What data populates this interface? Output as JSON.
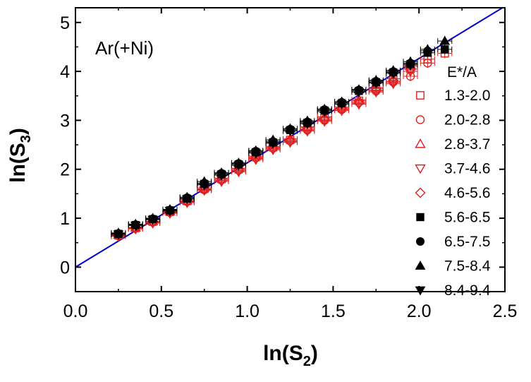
{
  "chart_data": {
    "type": "scatter",
    "title": "",
    "annotation": "Ar(+Ni)",
    "xlabel": {
      "main": "ln(S",
      "sub": "2",
      "close": ")"
    },
    "ylabel": {
      "main": "ln(S",
      "sub": "3",
      "close": ")"
    },
    "xlim": [
      0.0,
      2.5
    ],
    "ylim": [
      -0.5,
      5.3
    ],
    "x_ticks": [
      0.0,
      0.5,
      1.0,
      1.5,
      2.0,
      2.5
    ],
    "x_tick_labels": [
      "0.0",
      "0.5",
      "1.0",
      "1.5",
      "2.0",
      "2.5"
    ],
    "y_ticks": [
      0,
      1,
      2,
      3,
      4,
      5
    ],
    "y_tick_labels": [
      "0",
      "1",
      "2",
      "3",
      "4",
      "5"
    ],
    "grid": false,
    "legend": {
      "title": "E*/A",
      "placement": "right"
    },
    "fit_line": {
      "x": [
        0.0,
        2.5
      ],
      "y": [
        0.0,
        5.33
      ],
      "color": "#0000cc"
    },
    "series": [
      {
        "name": "1.3-2.0",
        "marker": "square-open",
        "color": "#e02020",
        "x": [
          0.25,
          0.35,
          0.45,
          0.55,
          0.65,
          0.75,
          0.85,
          0.95,
          1.05,
          1.15,
          1.25,
          1.35,
          1.45,
          1.55,
          1.65,
          1.75,
          1.85,
          1.95,
          2.05,
          2.15
        ],
        "y": [
          0.65,
          0.8,
          0.93,
          1.13,
          1.35,
          1.6,
          1.8,
          2.0,
          2.25,
          2.45,
          2.6,
          2.85,
          3.05,
          3.25,
          3.4,
          3.65,
          3.85,
          4.05,
          4.25,
          4.37
        ]
      },
      {
        "name": "2.0-2.8",
        "marker": "circle-open",
        "color": "#e02020",
        "x": [
          0.25,
          0.35,
          0.45,
          0.55,
          0.65,
          0.75,
          0.85,
          0.95,
          1.05,
          1.15,
          1.25,
          1.35,
          1.45,
          1.55,
          1.65,
          1.75,
          1.85,
          1.95,
          2.05
        ],
        "y": [
          0.64,
          0.8,
          0.92,
          1.12,
          1.34,
          1.58,
          1.78,
          1.98,
          2.23,
          2.43,
          2.58,
          2.8,
          3.0,
          3.22,
          3.37,
          3.6,
          3.78,
          3.9,
          4.17
        ]
      },
      {
        "name": "2.8-3.7",
        "marker": "triangle-up-open",
        "color": "#e02020",
        "x": [
          0.25,
          0.35,
          0.45,
          0.55,
          0.65,
          0.75,
          0.85,
          0.95,
          1.05,
          1.15,
          1.25,
          1.35,
          1.45,
          1.55,
          1.65,
          1.75,
          1.85,
          1.95
        ],
        "y": [
          0.66,
          0.81,
          0.94,
          1.14,
          1.36,
          1.62,
          1.82,
          2.02,
          2.27,
          2.47,
          2.62,
          2.87,
          3.07,
          3.27,
          3.42,
          3.67,
          3.85,
          4.1
        ]
      },
      {
        "name": "3.7-4.6",
        "marker": "triangle-down-open",
        "color": "#e02020",
        "x": [
          0.25,
          0.35,
          0.45,
          0.55,
          0.65,
          0.75,
          0.85,
          0.95,
          1.05,
          1.15,
          1.25,
          1.35,
          1.45,
          1.55,
          1.65,
          1.75,
          1.85,
          1.95
        ],
        "y": [
          0.63,
          0.78,
          0.9,
          1.1,
          1.32,
          1.57,
          1.75,
          1.95,
          2.2,
          2.4,
          2.55,
          2.78,
          2.98,
          3.2,
          3.33,
          3.58,
          3.75,
          4.0
        ]
      },
      {
        "name": "4.6-5.6",
        "marker": "diamond-open",
        "color": "#e02020",
        "x": [
          0.25,
          0.35,
          0.45,
          0.55,
          0.65,
          0.75,
          0.85,
          0.95,
          1.05,
          1.15,
          1.25,
          1.35,
          1.45,
          1.55,
          1.65,
          1.75,
          1.85,
          1.95
        ],
        "y": [
          0.65,
          0.79,
          0.91,
          1.11,
          1.33,
          1.59,
          1.77,
          1.97,
          2.22,
          2.42,
          2.57,
          2.82,
          3.02,
          3.23,
          3.35,
          3.62,
          3.8,
          4.05
        ]
      },
      {
        "name": "5.6-6.5",
        "marker": "square-filled",
        "color": "#000000",
        "x": [
          0.25,
          0.35,
          0.45,
          0.55,
          0.65,
          0.75,
          0.85,
          0.95,
          1.05,
          1.15,
          1.25,
          1.35,
          1.45,
          1.55,
          1.65,
          1.75,
          1.85,
          1.95,
          2.05,
          2.15
        ],
        "y": [
          0.68,
          0.86,
          0.98,
          1.16,
          1.4,
          1.7,
          1.9,
          2.1,
          2.35,
          2.55,
          2.8,
          2.95,
          3.2,
          3.35,
          3.6,
          3.78,
          3.98,
          4.15,
          4.38,
          4.45
        ]
      },
      {
        "name": "6.5-7.5",
        "marker": "circle-filled",
        "color": "#000000",
        "x": [
          0.25,
          0.35,
          0.45,
          0.55,
          0.65,
          0.75,
          0.85,
          0.95,
          1.05,
          1.15,
          1.25,
          1.35,
          1.45,
          1.55,
          1.65,
          1.75,
          1.85,
          1.95,
          2.05
        ],
        "y": [
          0.69,
          0.87,
          0.99,
          1.17,
          1.42,
          1.72,
          1.92,
          2.12,
          2.37,
          2.57,
          2.82,
          2.97,
          3.22,
          3.37,
          3.62,
          3.8,
          4.0,
          4.17,
          4.42
        ]
      },
      {
        "name": "7.5-8.4",
        "marker": "triangle-up-filled",
        "color": "#000000",
        "x": [
          0.25,
          0.35,
          0.45,
          0.55,
          0.65,
          0.75,
          0.85,
          0.95,
          1.05,
          1.15,
          1.25,
          1.35,
          1.45,
          1.55,
          1.65,
          1.75,
          1.85,
          1.95,
          2.05,
          2.15
        ],
        "y": [
          0.7,
          0.88,
          1.0,
          1.18,
          1.43,
          1.75,
          1.93,
          2.13,
          2.38,
          2.6,
          2.83,
          2.99,
          3.23,
          3.38,
          3.63,
          3.82,
          4.02,
          4.2,
          4.45,
          4.62
        ]
      },
      {
        "name": "8.4-9.4",
        "marker": "triangle-down-filled",
        "color": "#000000",
        "x": [
          0.25,
          0.35,
          0.45,
          0.55,
          0.65,
          0.75,
          0.85,
          0.95,
          1.05,
          1.15,
          1.25,
          1.35,
          1.45,
          1.55,
          1.65,
          1.75,
          1.85,
          1.95
        ],
        "y": [
          0.67,
          0.85,
          0.97,
          1.15,
          1.39,
          1.68,
          1.88,
          2.08,
          2.33,
          2.53,
          2.78,
          2.93,
          3.18,
          3.33,
          3.58,
          3.76,
          3.96,
          4.13
        ]
      }
    ]
  }
}
